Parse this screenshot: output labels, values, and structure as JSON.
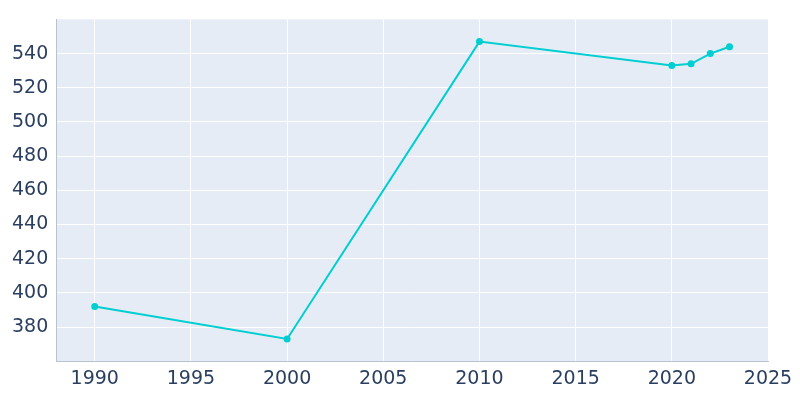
{
  "chart_data": {
    "type": "line",
    "x": [
      1990,
      2000,
      2010,
      2020,
      2021,
      2022,
      2023
    ],
    "values": [
      392,
      373,
      547,
      533,
      534,
      540,
      544
    ],
    "color": "#00ced1",
    "marker": "circle",
    "xlim": [
      1988,
      2025
    ],
    "xticks": [
      1990,
      1995,
      2000,
      2005,
      2010,
      2015,
      2020,
      2025
    ],
    "ylim": [
      360,
      560
    ],
    "yticks": [
      380,
      400,
      420,
      440,
      460,
      480,
      500,
      520,
      540
    ],
    "grid": true
  }
}
